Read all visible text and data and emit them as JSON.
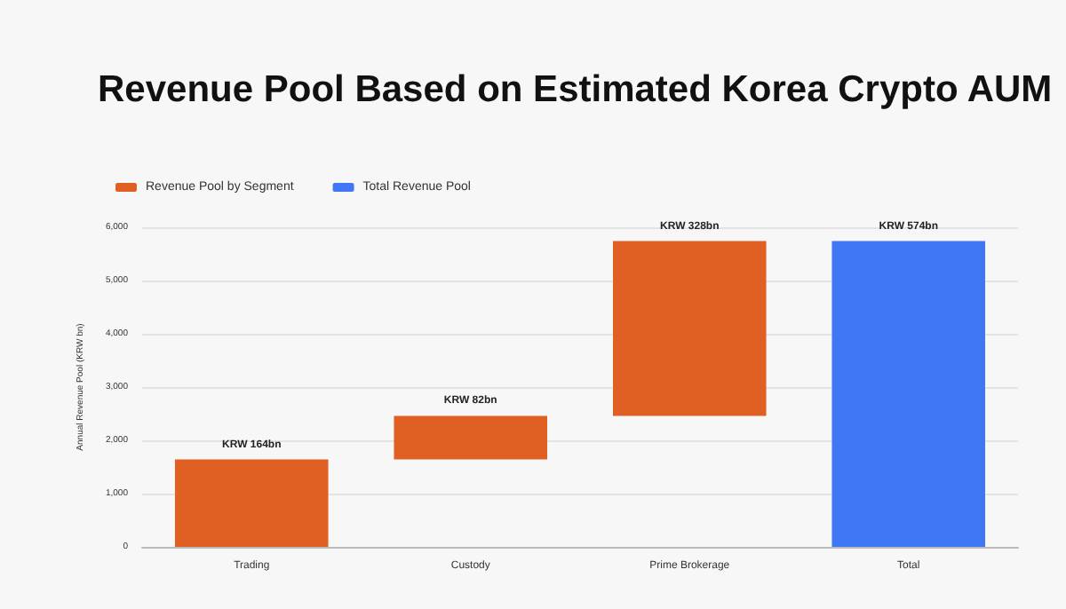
{
  "chart_data": {
    "type": "bar",
    "title": "Revenue Pool Based on Estimated Korea Crypto AUM",
    "ylabel": "Annual Revenue Pool (KRW bn)",
    "categories": [
      "Trading",
      "Custody",
      "Prime Brokerage",
      "Total"
    ],
    "series": [
      {
        "name": "Revenue Pool by Segment",
        "color": "#e06024",
        "values": [
          1640,
          820,
          3280,
          null
        ],
        "base": [
          0,
          1640,
          2460,
          null
        ],
        "value_labels": [
          "KRW 164bn",
          "KRW 82bn",
          "KRW 328bn",
          null
        ]
      },
      {
        "name": "Total Revenue Pool",
        "color": "#3f77f5",
        "values": [
          null,
          null,
          null,
          5740
        ],
        "base": [
          null,
          null,
          null,
          0
        ],
        "value_labels": [
          null,
          null,
          null,
          "KRW 574bn"
        ]
      }
    ],
    "ylim": [
      0,
      6000
    ],
    "yticks": [
      0,
      {
        "value": 1000,
        "label": "1,000"
      },
      {
        "value": 2000,
        "label": "2,000"
      },
      {
        "value": 3000,
        "label": "3,000"
      },
      {
        "value": 4000,
        "label": "4,000"
      },
      {
        "value": 5000,
        "label": "5,000"
      },
      {
        "value": 6000,
        "label": "6,000"
      }
    ],
    "grid": "y",
    "legend": "top left",
    "stacked": true
  }
}
